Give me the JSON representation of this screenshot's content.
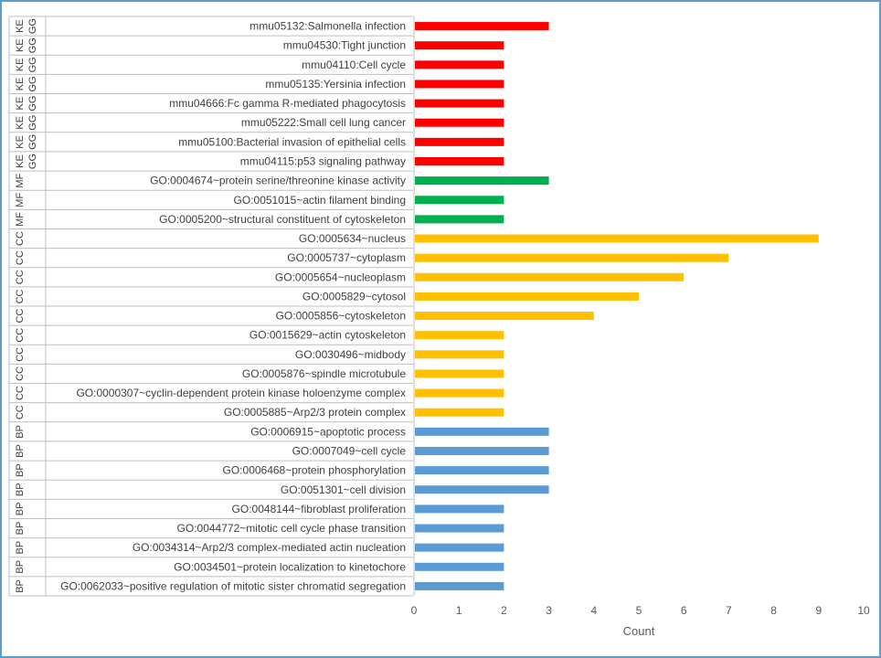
{
  "chart_data": {
    "type": "bar",
    "orientation": "horizontal",
    "xlabel": "Count",
    "xlim": [
      0,
      10
    ],
    "x_ticks": [
      "0",
      "1",
      "2",
      "3",
      "4",
      "5",
      "6",
      "7",
      "8",
      "9",
      "10"
    ],
    "grid": false,
    "colors": {
      "KEGG": "#ff0000",
      "MF": "#00b050",
      "CC": "#ffc000",
      "BP": "#5b9bd5"
    },
    "rows": [
      {
        "group": "KEGG",
        "label": "mmu05132:Salmonella infection",
        "value": 3
      },
      {
        "group": "KEGG",
        "label": "mmu04530:Tight junction",
        "value": 2
      },
      {
        "group": "KEGG",
        "label": "mmu04110:Cell cycle",
        "value": 2
      },
      {
        "group": "KEGG",
        "label": "mmu05135:Yersinia infection",
        "value": 2
      },
      {
        "group": "KEGG",
        "label": "mmu04666:Fc gamma R-mediated phagocytosis",
        "value": 2
      },
      {
        "group": "KEGG",
        "label": "mmu05222:Small cell lung cancer",
        "value": 2
      },
      {
        "group": "KEGG",
        "label": "mmu05100:Bacterial invasion of epithelial cells",
        "value": 2
      },
      {
        "group": "KEGG",
        "label": "mmu04115:p53 signaling pathway",
        "value": 2
      },
      {
        "group": "MF",
        "label": "GO:0004674~protein serine/threonine kinase activity",
        "value": 3
      },
      {
        "group": "MF",
        "label": "GO:0051015~actin filament binding",
        "value": 2
      },
      {
        "group": "MF",
        "label": "GO:0005200~structural constituent of cytoskeleton",
        "value": 2
      },
      {
        "group": "CC",
        "label": "GO:0005634~nucleus",
        "value": 9
      },
      {
        "group": "CC",
        "label": "GO:0005737~cytoplasm",
        "value": 7
      },
      {
        "group": "CC",
        "label": "GO:0005654~nucleoplasm",
        "value": 6
      },
      {
        "group": "CC",
        "label": "GO:0005829~cytosol",
        "value": 5
      },
      {
        "group": "CC",
        "label": "GO:0005856~cytoskeleton",
        "value": 4
      },
      {
        "group": "CC",
        "label": "GO:0015629~actin cytoskeleton",
        "value": 2
      },
      {
        "group": "CC",
        "label": "GO:0030496~midbody",
        "value": 2
      },
      {
        "group": "CC",
        "label": "GO:0005876~spindle microtubule",
        "value": 2
      },
      {
        "group": "CC",
        "label": "GO:0000307~cyclin-dependent protein kinase holoenzyme complex",
        "value": 2
      },
      {
        "group": "CC",
        "label": "GO:0005885~Arp2/3 protein complex",
        "value": 2
      },
      {
        "group": "BP",
        "label": "GO:0006915~apoptotic process",
        "value": 3
      },
      {
        "group": "BP",
        "label": "GO:0007049~cell cycle",
        "value": 3
      },
      {
        "group": "BP",
        "label": "GO:0006468~protein phosphorylation",
        "value": 3
      },
      {
        "group": "BP",
        "label": "GO:0051301~cell division",
        "value": 3
      },
      {
        "group": "BP",
        "label": "GO:0048144~fibroblast proliferation",
        "value": 2
      },
      {
        "group": "BP",
        "label": "GO:0044772~mitotic cell cycle phase transition",
        "value": 2
      },
      {
        "group": "BP",
        "label": "GO:0034314~Arp2/3 complex-mediated actin nucleation",
        "value": 2
      },
      {
        "group": "BP",
        "label": "GO:0034501~protein localization to kinetochore",
        "value": 2
      },
      {
        "group": "BP",
        "label": "GO:0062033~positive regulation of mitotic sister chromatid segregation",
        "value": 2
      }
    ]
  }
}
